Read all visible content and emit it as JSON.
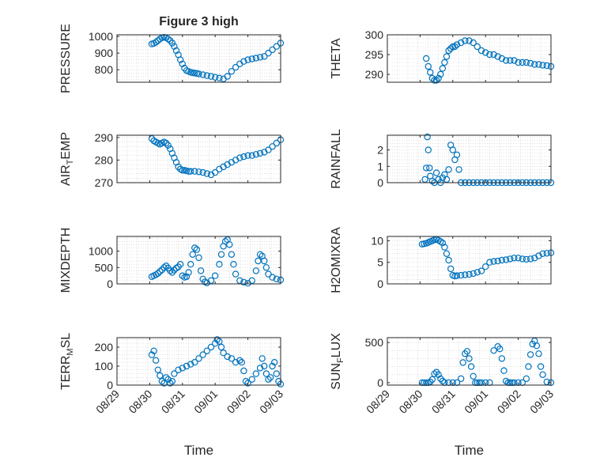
{
  "figure_title": "Figure 3 high",
  "colors": {
    "marker": "#0072BD",
    "axis": "#262626",
    "grid": "#c9c9c9",
    "background": "#ffffff"
  },
  "chart_data": [
    {
      "type": "scatter",
      "title": "Figure 3 high",
      "ylabel": "PRESSURE",
      "xlabel": "",
      "ylim": [
        725,
        1010
      ],
      "yticks": [
        800,
        900,
        1000
      ],
      "xticks": [
        "08/29",
        "08/30",
        "08/31",
        "09/01",
        "09/02",
        "09/03"
      ],
      "xtick_labels_shown": false,
      "grid": true,
      "x": [
        29.85,
        29.9,
        29.95,
        30.0,
        30.05,
        30.1,
        30.15,
        30.2,
        30.25,
        30.3,
        30.35,
        30.4,
        30.45,
        30.5,
        30.55,
        30.6,
        30.65,
        30.7,
        30.75,
        30.8,
        30.85,
        30.9,
        30.95,
        31.0,
        31.1,
        31.2,
        31.3,
        31.4,
        31.5,
        31.6,
        31.7,
        31.8,
        31.9,
        32.0,
        32.1,
        32.2,
        32.3,
        32.4,
        32.5,
        32.6,
        32.7,
        32.8,
        32.9,
        33.0
      ],
      "values": [
        955,
        958,
        965,
        975,
        985,
        992,
        995,
        992,
        985,
        975,
        960,
        940,
        915,
        890,
        860,
        835,
        810,
        795,
        790,
        785,
        782,
        780,
        778,
        775,
        770,
        765,
        760,
        755,
        750,
        745,
        760,
        790,
        815,
        835,
        850,
        860,
        865,
        870,
        875,
        880,
        900,
        920,
        940,
        960
      ]
    },
    {
      "type": "scatter",
      "ylabel": "THETA",
      "xlabel": "",
      "ylim": [
        288,
        300
      ],
      "yticks": [
        290,
        295,
        300
      ],
      "xticks": [
        "08/29",
        "08/30",
        "08/31",
        "09/01",
        "09/02",
        "09/03"
      ],
      "xtick_labels_shown": false,
      "grid": true,
      "x": [
        29.95,
        30.0,
        30.05,
        30.1,
        30.15,
        30.2,
        30.25,
        30.3,
        30.35,
        30.4,
        30.45,
        30.5,
        30.55,
        30.6,
        30.65,
        30.7,
        30.8,
        30.9,
        31.0,
        31.1,
        31.2,
        31.3,
        31.4,
        31.5,
        31.6,
        31.7,
        31.8,
        31.9,
        32.0,
        32.1,
        32.2,
        32.3,
        32.4,
        32.5,
        32.6,
        32.7,
        32.8,
        32.9,
        33.0
      ],
      "values": [
        294,
        292,
        290.5,
        289,
        288.5,
        288.5,
        289,
        290,
        291.5,
        293,
        294.5,
        296,
        296.5,
        297,
        297,
        297.5,
        298,
        298.5,
        298.5,
        298,
        297,
        296,
        295.5,
        295,
        295,
        294.5,
        294,
        293.5,
        293.5,
        293.5,
        293,
        293,
        293,
        292.8,
        292.5,
        292.5,
        292.3,
        292.2,
        292
      ]
    },
    {
      "type": "scatter",
      "ylabel": "AIR_TEMP",
      "xlabel": "",
      "ylim": [
        270,
        291
      ],
      "yticks": [
        270,
        280,
        290
      ],
      "xticks": [
        "08/29",
        "08/30",
        "08/31",
        "09/01",
        "09/02",
        "09/03"
      ],
      "xtick_labels_shown": false,
      "grid": true,
      "x": [
        29.85,
        29.9,
        29.95,
        30.0,
        30.05,
        30.1,
        30.15,
        30.2,
        30.25,
        30.3,
        30.35,
        30.4,
        30.45,
        30.5,
        30.55,
        30.6,
        30.65,
        30.7,
        30.75,
        30.8,
        30.9,
        31.0,
        31.1,
        31.2,
        31.3,
        31.4,
        31.5,
        31.6,
        31.7,
        31.8,
        31.9,
        32.0,
        32.1,
        32.2,
        32.3,
        32.4,
        32.5,
        32.6,
        32.7,
        32.8,
        32.9,
        33.0
      ],
      "values": [
        289.5,
        288.5,
        288,
        287.5,
        287,
        287.5,
        288,
        287.5,
        286.5,
        285,
        283,
        281,
        279,
        277,
        276,
        275.5,
        275.5,
        275.2,
        275,
        275,
        275,
        274.8,
        274.5,
        274,
        273.5,
        274.5,
        276,
        277,
        278,
        279,
        280,
        281,
        281.5,
        282,
        282,
        282.5,
        283,
        283.5,
        284.5,
        286,
        287.5,
        289
      ]
    },
    {
      "type": "scatter",
      "ylabel": "RAINFALL",
      "xlabel": "",
      "ylim": [
        0,
        2.9
      ],
      "yticks": [
        0,
        1,
        2
      ],
      "xticks": [
        "08/29",
        "08/30",
        "08/31",
        "09/01",
        "09/02",
        "09/03"
      ],
      "xtick_labels_shown": false,
      "grid": true,
      "x": [
        29.92,
        29.95,
        29.98,
        30.0,
        30.03,
        30.05,
        30.1,
        30.15,
        30.2,
        30.25,
        30.3,
        30.35,
        30.4,
        30.45,
        30.5,
        30.55,
        30.6,
        30.65,
        30.7,
        30.75,
        30.8,
        30.9,
        31.0,
        31.1,
        31.2,
        31.3,
        31.4,
        31.5,
        31.6,
        31.7,
        31.8,
        31.9,
        32.0,
        32.1,
        32.2,
        32.3,
        32.4,
        32.5,
        32.6,
        32.7,
        32.8,
        32.9,
        33.0
      ],
      "values": [
        0.2,
        0.9,
        2.8,
        2.0,
        0.9,
        0.4,
        0.1,
        0,
        0.6,
        0.2,
        0,
        0.3,
        0.5,
        0.2,
        0.8,
        2.3,
        2.0,
        1.4,
        1.7,
        0.8,
        0,
        0,
        0,
        0,
        0,
        0,
        0,
        0,
        0,
        0,
        0,
        0,
        0,
        0,
        0,
        0,
        0,
        0,
        0,
        0,
        0,
        0,
        0
      ]
    },
    {
      "type": "scatter",
      "ylabel": "MIXDEPTH",
      "xlabel": "",
      "ylim": [
        0,
        1450
      ],
      "yticks": [
        0,
        500,
        1000
      ],
      "xticks": [
        "08/29",
        "08/30",
        "08/31",
        "09/01",
        "09/02",
        "09/03"
      ],
      "xtick_labels_shown": false,
      "grid": true,
      "x": [
        29.85,
        29.9,
        29.95,
        30.0,
        30.05,
        30.1,
        30.15,
        30.2,
        30.25,
        30.3,
        30.35,
        30.4,
        30.45,
        30.5,
        30.55,
        30.6,
        30.65,
        30.7,
        30.75,
        30.8,
        30.85,
        30.9,
        30.95,
        31.0,
        31.05,
        31.1,
        31.15,
        31.2,
        31.3,
        31.4,
        31.5,
        31.55,
        31.6,
        31.65,
        31.7,
        31.75,
        31.8,
        31.85,
        31.9,
        32.0,
        32.1,
        32.2,
        32.3,
        32.4,
        32.45,
        32.5,
        32.55,
        32.6,
        32.65,
        32.7,
        32.8,
        32.9,
        33.0
      ],
      "values": [
        220,
        250,
        280,
        320,
        380,
        430,
        500,
        550,
        480,
        400,
        350,
        420,
        480,
        520,
        600,
        250,
        200,
        220,
        350,
        600,
        900,
        1100,
        1050,
        800,
        400,
        150,
        60,
        30,
        100,
        250,
        600,
        900,
        1150,
        1300,
        1350,
        1200,
        900,
        600,
        300,
        100,
        50,
        20,
        100,
        400,
        700,
        900,
        850,
        700,
        500,
        300,
        200,
        150,
        120
      ]
    },
    {
      "type": "scatter",
      "ylabel": "H2OMIXRA",
      "xlabel": "",
      "ylim": [
        0,
        11
      ],
      "yticks": [
        0,
        5,
        10
      ],
      "xticks": [
        "08/29",
        "08/30",
        "08/31",
        "09/01",
        "09/02",
        "09/03"
      ],
      "xtick_labels_shown": false,
      "grid": true,
      "x": [
        29.85,
        29.9,
        29.95,
        30.0,
        30.05,
        30.1,
        30.15,
        30.2,
        30.25,
        30.3,
        30.35,
        30.4,
        30.45,
        30.5,
        30.55,
        30.6,
        30.65,
        30.7,
        30.8,
        30.9,
        31.0,
        31.1,
        31.2,
        31.3,
        31.4,
        31.5,
        31.6,
        31.7,
        31.8,
        31.9,
        32.0,
        32.1,
        32.2,
        32.3,
        32.4,
        32.5,
        32.6,
        32.7,
        32.8,
        32.9,
        33.0
      ],
      "values": [
        9.2,
        9.3,
        9.4,
        9.6,
        9.8,
        10,
        10.2,
        10.3,
        10.1,
        9.8,
        9.5,
        8.5,
        7,
        5.5,
        3.5,
        2,
        1.8,
        1.9,
        2,
        2.1,
        2.2,
        2.4,
        2.7,
        3,
        4,
        5,
        5.2,
        5.3,
        5.5,
        5.6,
        5.8,
        6,
        6,
        5.8,
        5.7,
        5.8,
        6,
        6.5,
        7,
        7.1,
        7.2
      ]
    },
    {
      "type": "scatter",
      "ylabel": "TERR_MSL",
      "xlabel": "Time",
      "ylim": [
        0,
        250
      ],
      "yticks": [
        0,
        100,
        200
      ],
      "xticks": [
        "08/29",
        "08/30",
        "08/31",
        "09/01",
        "09/02",
        "09/03"
      ],
      "xtick_labels_shown": true,
      "grid": true,
      "x": [
        29.85,
        29.9,
        29.95,
        30.0,
        30.05,
        30.1,
        30.15,
        30.2,
        30.25,
        30.3,
        30.35,
        30.4,
        30.5,
        30.6,
        30.7,
        30.8,
        30.9,
        31.0,
        31.1,
        31.2,
        31.3,
        31.4,
        31.45,
        31.5,
        31.55,
        31.6,
        31.7,
        31.8,
        31.9,
        32.0,
        32.05,
        32.1,
        32.15,
        32.2,
        32.3,
        32.4,
        32.5,
        32.55,
        32.6,
        32.65,
        32.7,
        32.75,
        32.8,
        32.85,
        32.9,
        32.95,
        33.0
      ],
      "values": [
        160,
        180,
        130,
        80,
        50,
        20,
        10,
        40,
        30,
        10,
        20,
        60,
        80,
        90,
        100,
        110,
        120,
        140,
        160,
        180,
        200,
        220,
        240,
        230,
        200,
        170,
        150,
        140,
        120,
        130,
        120,
        75,
        20,
        10,
        30,
        60,
        90,
        140,
        100,
        60,
        30,
        40,
        100,
        120,
        60,
        20,
        5
      ]
    },
    {
      "type": "scatter",
      "ylabel": "SUN_FLUX",
      "xlabel": "Time",
      "ylim": [
        -30,
        560
      ],
      "yticks": [
        0,
        500
      ],
      "xticks": [
        "08/29",
        "08/30",
        "08/31",
        "09/01",
        "09/02",
        "09/03"
      ],
      "xtick_labels_shown": true,
      "grid": true,
      "x": [
        29.85,
        29.9,
        29.95,
        30.0,
        30.05,
        30.1,
        30.15,
        30.2,
        30.25,
        30.3,
        30.35,
        30.4,
        30.5,
        30.6,
        30.7,
        30.8,
        30.85,
        30.9,
        30.95,
        31.0,
        31.05,
        31.1,
        31.15,
        31.2,
        31.25,
        31.3,
        31.4,
        31.5,
        31.6,
        31.7,
        31.75,
        31.8,
        31.85,
        31.9,
        31.95,
        32.0,
        32.05,
        32.1,
        32.2,
        32.3,
        32.4,
        32.45,
        32.5,
        32.55,
        32.6,
        32.65,
        32.7,
        32.75,
        32.8,
        32.9,
        33.0
      ],
      "values": [
        0,
        0,
        0,
        0,
        10,
        40,
        110,
        130,
        100,
        50,
        20,
        0,
        0,
        0,
        0,
        50,
        250,
        360,
        390,
        300,
        200,
        80,
        0,
        0,
        0,
        0,
        0,
        0,
        400,
        450,
        420,
        300,
        150,
        20,
        0,
        0,
        0,
        0,
        0,
        0,
        50,
        200,
        350,
        480,
        520,
        460,
        360,
        200,
        100,
        10,
        0
      ]
    }
  ]
}
